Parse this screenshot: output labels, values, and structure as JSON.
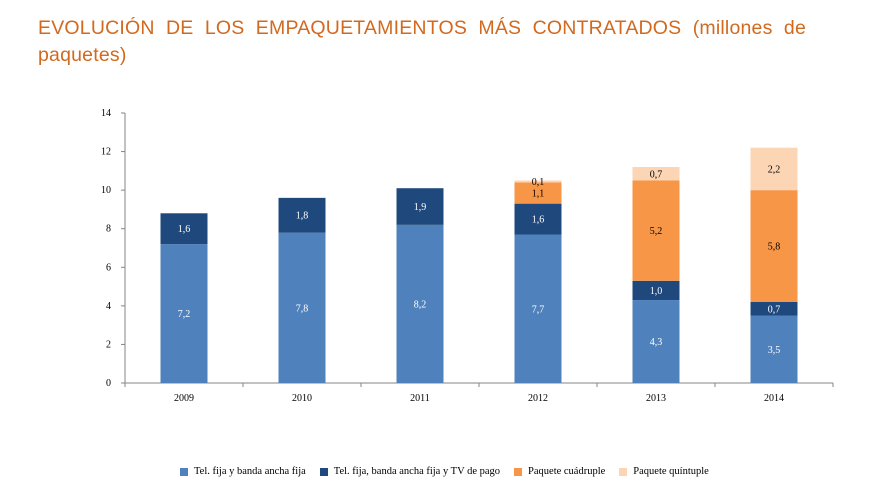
{
  "title": "EVOLUCIÓN DE LOS EMPAQUETAMIENTOS MÁS CONTRATADOS (millones de paquetes)",
  "chart_data": {
    "type": "bar",
    "stacked": true,
    "categories": [
      "2009",
      "2010",
      "2011",
      "2012",
      "2013",
      "2014"
    ],
    "ylim": [
      0,
      14
    ],
    "yticks": [
      "0",
      "2",
      "4",
      "6",
      "8",
      "10",
      "12",
      "14"
    ],
    "legend_position": "bottom",
    "series": [
      {
        "name": "Tel. fija y banda ancha fija",
        "color": "#4f81bd",
        "label_color": "#ffffff",
        "values": [
          7.2,
          7.8,
          8.2,
          7.7,
          4.3,
          3.5
        ],
        "labels": [
          "7,2",
          "7,8",
          "8,2",
          "7,7",
          "4,3",
          "3,5"
        ]
      },
      {
        "name": "Tel. fija, banda ancha fija y TV de pago",
        "color": "#1f497d",
        "label_color": "#ffffff",
        "values": [
          1.6,
          1.8,
          1.9,
          1.6,
          1.0,
          0.7
        ],
        "labels": [
          "1,6",
          "1,8",
          "1,9",
          "1,6",
          "1,0",
          "0,7"
        ]
      },
      {
        "name": "Paquete cuádruple",
        "color": "#f79646",
        "label_color": "#000000",
        "values": [
          0,
          0,
          0,
          1.1,
          5.2,
          5.8
        ],
        "labels": [
          "",
          "",
          "",
          "1,1",
          "5,2",
          "5,8"
        ]
      },
      {
        "name": "Paquete quíntuple",
        "color": "#fcd5b4",
        "label_color": "#000000",
        "values": [
          0,
          0,
          0,
          0.1,
          0.7,
          2.2
        ],
        "labels": [
          "",
          "",
          "",
          "0,1",
          "0,7",
          "2,2"
        ]
      }
    ]
  }
}
